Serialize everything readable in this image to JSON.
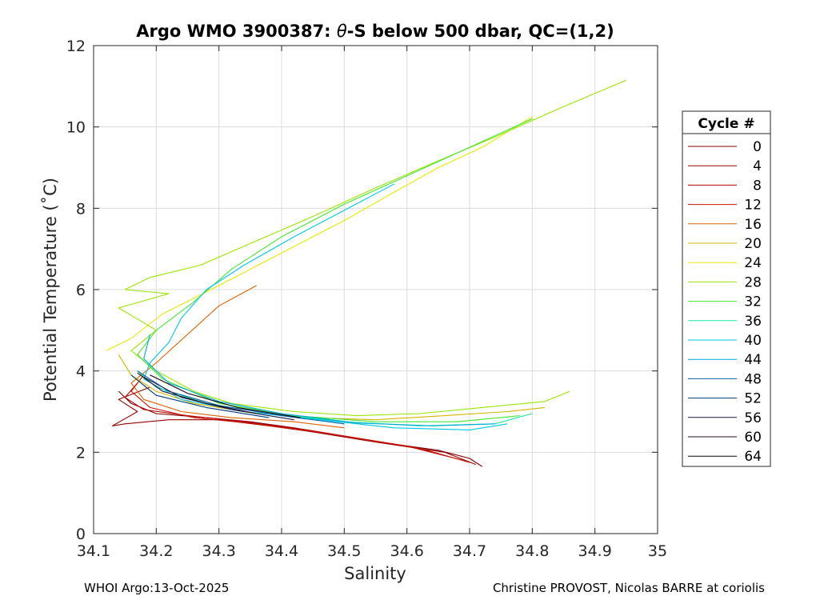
{
  "chart_data": {
    "type": "line",
    "title_prefix": "Argo WMO 3900387: ",
    "title_symbol": "θ",
    "title_suffix": "-S below 500 dbar,  QC=(1,2)",
    "xlabel": "Salinity",
    "ylabel": "Potential Temperature (˚C)",
    "xlim": [
      34.1,
      35
    ],
    "ylim": [
      0,
      12
    ],
    "xticks": [
      "34.1",
      "34.2",
      "34.3",
      "34.4",
      "34.5",
      "34.6",
      "34.7",
      "34.8",
      "34.9",
      "35"
    ],
    "yticks": [
      "0",
      "2",
      "4",
      "6",
      "8",
      "10",
      "12"
    ],
    "grid": true,
    "legend_title": "Cycle #",
    "legend_position": "right",
    "series": [
      {
        "name": "0",
        "color": "#800000",
        "points": [
          [
            34.72,
            1.65
          ],
          [
            34.7,
            1.85
          ],
          [
            34.65,
            2.05
          ],
          [
            34.58,
            2.2
          ],
          [
            34.5,
            2.4
          ],
          [
            34.42,
            2.6
          ],
          [
            34.35,
            2.75
          ],
          [
            34.28,
            2.85
          ],
          [
            34.2,
            2.95
          ],
          [
            34.16,
            3.2
          ],
          [
            34.14,
            3.5
          ]
        ]
      },
      {
        "name": "4",
        "color": "#9a0000",
        "points": [
          [
            34.71,
            1.7
          ],
          [
            34.66,
            2.0
          ],
          [
            34.55,
            2.25
          ],
          [
            34.45,
            2.5
          ],
          [
            34.38,
            2.65
          ],
          [
            34.3,
            2.8
          ],
          [
            34.22,
            2.8
          ],
          [
            34.15,
            2.7
          ],
          [
            34.13,
            2.65
          ],
          [
            34.17,
            3.0
          ],
          [
            34.14,
            3.3
          ],
          [
            34.19,
            3.6
          ]
        ]
      },
      {
        "name": "8",
        "color": "#b40000",
        "points": [
          [
            34.7,
            1.75
          ],
          [
            34.62,
            2.1
          ],
          [
            34.52,
            2.35
          ],
          [
            34.44,
            2.55
          ],
          [
            34.34,
            2.75
          ],
          [
            34.25,
            2.9
          ],
          [
            34.18,
            3.05
          ],
          [
            34.15,
            3.35
          ],
          [
            34.17,
            3.7
          ]
        ]
      },
      {
        "name": "12",
        "color": "#cc1100",
        "points": [
          [
            34.69,
            1.8
          ],
          [
            34.6,
            2.15
          ],
          [
            34.48,
            2.45
          ],
          [
            34.36,
            2.7
          ],
          [
            34.26,
            2.85
          ],
          [
            34.19,
            3.1
          ],
          [
            34.16,
            3.5
          ],
          [
            34.18,
            3.9
          ]
        ]
      },
      {
        "name": "16",
        "color": "#e06000",
        "points": [
          [
            34.36,
            6.1
          ],
          [
            34.3,
            5.6
          ],
          [
            34.25,
            4.9
          ],
          [
            34.2,
            4.2
          ],
          [
            34.16,
            3.7
          ],
          [
            34.18,
            3.3
          ],
          [
            34.24,
            3.0
          ],
          [
            34.32,
            2.85
          ],
          [
            34.42,
            2.75
          ],
          [
            34.5,
            2.6
          ]
        ]
      },
      {
        "name": "20",
        "color": "#d6b400",
        "points": [
          [
            34.14,
            4.4
          ],
          [
            34.16,
            3.9
          ],
          [
            34.2,
            3.5
          ],
          [
            34.26,
            3.2
          ],
          [
            34.34,
            3.0
          ],
          [
            34.44,
            2.85
          ],
          [
            34.55,
            2.8
          ],
          [
            34.66,
            2.9
          ],
          [
            34.76,
            3.0
          ],
          [
            34.82,
            3.1
          ]
        ]
      },
      {
        "name": "24",
        "color": "#e8e800",
        "points": [
          [
            34.12,
            4.5
          ],
          [
            34.16,
            4.8
          ],
          [
            34.21,
            5.4
          ],
          [
            34.3,
            6.1
          ],
          [
            34.4,
            6.9
          ],
          [
            34.5,
            7.7
          ],
          [
            34.58,
            8.4
          ],
          [
            34.65,
            9.0
          ],
          [
            34.72,
            9.5
          ],
          [
            34.8,
            10.25
          ]
        ]
      },
      {
        "name": "28",
        "color": "#9ae600",
        "points": [
          [
            34.95,
            11.15
          ],
          [
            34.85,
            10.5
          ],
          [
            34.74,
            9.75
          ],
          [
            34.64,
            9.1
          ],
          [
            34.55,
            8.5
          ],
          [
            34.45,
            7.8
          ],
          [
            34.36,
            7.2
          ],
          [
            34.27,
            6.6
          ],
          [
            34.19,
            6.3
          ],
          [
            34.15,
            6.0
          ],
          [
            34.22,
            5.9
          ],
          [
            34.14,
            5.55
          ],
          [
            34.2,
            5.0
          ],
          [
            34.16,
            4.5
          ],
          [
            34.2,
            4.0
          ],
          [
            34.26,
            3.5
          ],
          [
            34.32,
            3.2
          ],
          [
            34.42,
            3.0
          ],
          [
            34.52,
            2.9
          ],
          [
            34.62,
            2.95
          ],
          [
            34.72,
            3.1
          ],
          [
            34.82,
            3.25
          ],
          [
            34.86,
            3.5
          ]
        ]
      },
      {
        "name": "32",
        "color": "#46e630",
        "points": [
          [
            34.8,
            10.2
          ],
          [
            34.7,
            9.5
          ],
          [
            34.6,
            8.8
          ],
          [
            34.5,
            8.1
          ],
          [
            34.4,
            7.3
          ],
          [
            34.32,
            6.5
          ],
          [
            34.26,
            5.7
          ],
          [
            34.2,
            5.0
          ],
          [
            34.17,
            4.4
          ],
          [
            34.21,
            3.8
          ],
          [
            34.3,
            3.2
          ],
          [
            34.42,
            2.9
          ],
          [
            34.55,
            2.75
          ],
          [
            34.68,
            2.75
          ],
          [
            34.78,
            2.9
          ]
        ]
      },
      {
        "name": "36",
        "color": "#18e8a0",
        "points": [
          [
            34.17,
            4.0
          ],
          [
            34.2,
            3.6
          ],
          [
            34.28,
            3.2
          ],
          [
            34.38,
            2.95
          ],
          [
            34.5,
            2.75
          ],
          [
            34.62,
            2.65
          ],
          [
            34.74,
            2.7
          ],
          [
            34.8,
            2.95
          ]
        ]
      },
      {
        "name": "40",
        "color": "#00c8e8",
        "points": [
          [
            34.58,
            8.6
          ],
          [
            34.5,
            7.95
          ],
          [
            34.42,
            7.3
          ],
          [
            34.34,
            6.6
          ],
          [
            34.28,
            6.0
          ],
          [
            34.24,
            5.3
          ],
          [
            34.22,
            4.7
          ],
          [
            34.19,
            4.2
          ],
          [
            34.18,
            3.8
          ],
          [
            34.24,
            3.3
          ],
          [
            34.34,
            3.0
          ],
          [
            34.46,
            2.8
          ],
          [
            34.58,
            2.6
          ],
          [
            34.7,
            2.55
          ],
          [
            34.76,
            2.7
          ]
        ]
      },
      {
        "name": "44",
        "color": "#00a8d8",
        "points": [
          [
            34.19,
            4.9
          ],
          [
            34.18,
            4.3
          ],
          [
            34.22,
            3.7
          ],
          [
            34.3,
            3.25
          ],
          [
            34.4,
            2.95
          ],
          [
            34.52,
            2.72
          ],
          [
            34.64,
            2.65
          ],
          [
            34.74,
            2.7
          ]
        ]
      },
      {
        "name": "48",
        "color": "#0060a8",
        "points": [
          [
            34.17,
            4.0
          ],
          [
            34.22,
            3.5
          ],
          [
            34.3,
            3.15
          ],
          [
            34.4,
            2.9
          ],
          [
            34.5,
            2.7
          ]
        ]
      },
      {
        "name": "52",
        "color": "#003c7c",
        "points": [
          [
            34.16,
            3.9
          ],
          [
            34.2,
            3.4
          ],
          [
            34.28,
            3.1
          ],
          [
            34.38,
            2.85
          ]
        ]
      },
      {
        "name": "56",
        "color": "#1c1848",
        "points": [
          [
            34.18,
            3.85
          ],
          [
            34.24,
            3.35
          ],
          [
            34.32,
            3.05
          ],
          [
            34.42,
            2.8
          ]
        ]
      },
      {
        "name": "60",
        "color": "#240c24",
        "points": [
          [
            34.17,
            3.95
          ],
          [
            34.21,
            3.5
          ],
          [
            34.28,
            3.2
          ],
          [
            34.36,
            2.95
          ]
        ]
      },
      {
        "name": "64",
        "color": "#100010",
        "points": [
          [
            34.19,
            3.9
          ],
          [
            34.25,
            3.45
          ],
          [
            34.33,
            3.1
          ],
          [
            34.43,
            2.85
          ]
        ]
      }
    ]
  },
  "footer": {
    "left": "WHOI Argo:13-Oct-2025",
    "right": "Christine PROVOST, Nicolas BARRE at coriolis"
  }
}
